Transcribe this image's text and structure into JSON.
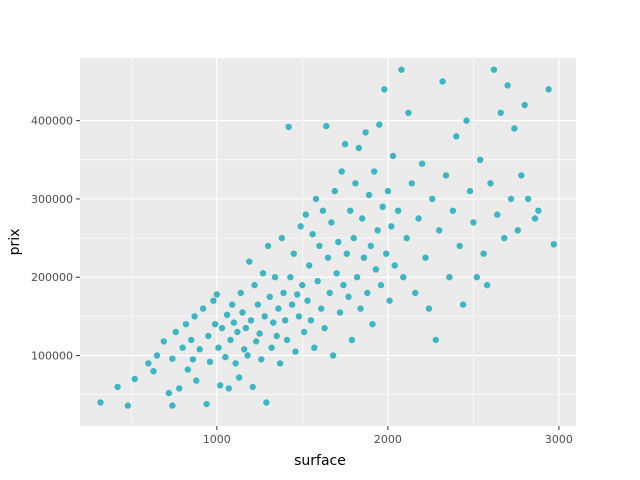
{
  "chart_data": {
    "type": "scatter",
    "title": "",
    "xlabel": "surface",
    "ylabel": "prix",
    "xlim": [
      200,
      3100
    ],
    "ylim": [
      10000,
      480000
    ],
    "x_ticks": [
      1000,
      2000,
      3000
    ],
    "x_tick_labels": [
      "1000",
      "2000",
      "3000"
    ],
    "y_ticks": [
      100000,
      200000,
      300000,
      400000
    ],
    "y_tick_labels": [
      "100000",
      "200000",
      "300000",
      "400000"
    ],
    "grid": true,
    "point_color": "#3eb6c1",
    "panel_color": "#ebebeb",
    "grid_color": "#ffffff",
    "points": [
      [
        320,
        40000
      ],
      [
        420,
        60000
      ],
      [
        480,
        36000
      ],
      [
        520,
        70000
      ],
      [
        600,
        90000
      ],
      [
        630,
        80000
      ],
      [
        650,
        100000
      ],
      [
        690,
        118000
      ],
      [
        720,
        52000
      ],
      [
        740,
        36000
      ],
      [
        740,
        96000
      ],
      [
        760,
        130000
      ],
      [
        780,
        58000
      ],
      [
        800,
        110000
      ],
      [
        820,
        140000
      ],
      [
        830,
        82000
      ],
      [
        850,
        120000
      ],
      [
        860,
        95000
      ],
      [
        870,
        150000
      ],
      [
        880,
        68000
      ],
      [
        900,
        108000
      ],
      [
        920,
        160000
      ],
      [
        940,
        38000
      ],
      [
        950,
        125000
      ],
      [
        960,
        92000
      ],
      [
        980,
        170000
      ],
      [
        990,
        140000
      ],
      [
        1000,
        178000
      ],
      [
        1010,
        110000
      ],
      [
        1020,
        62000
      ],
      [
        1030,
        135000
      ],
      [
        1050,
        98000
      ],
      [
        1060,
        152000
      ],
      [
        1070,
        58000
      ],
      [
        1080,
        120000
      ],
      [
        1090,
        165000
      ],
      [
        1100,
        142000
      ],
      [
        1110,
        90000
      ],
      [
        1120,
        130000
      ],
      [
        1130,
        72000
      ],
      [
        1140,
        180000
      ],
      [
        1150,
        155000
      ],
      [
        1160,
        108000
      ],
      [
        1170,
        135000
      ],
      [
        1180,
        100000
      ],
      [
        1190,
        220000
      ],
      [
        1200,
        145000
      ],
      [
        1210,
        60000
      ],
      [
        1220,
        190000
      ],
      [
        1230,
        118000
      ],
      [
        1240,
        165000
      ],
      [
        1250,
        128000
      ],
      [
        1260,
        95000
      ],
      [
        1270,
        205000
      ],
      [
        1280,
        150000
      ],
      [
        1290,
        40000
      ],
      [
        1300,
        240000
      ],
      [
        1310,
        175000
      ],
      [
        1320,
        110000
      ],
      [
        1330,
        142000
      ],
      [
        1340,
        200000
      ],
      [
        1350,
        125000
      ],
      [
        1360,
        160000
      ],
      [
        1370,
        90000
      ],
      [
        1380,
        250000
      ],
      [
        1390,
        180000
      ],
      [
        1400,
        145000
      ],
      [
        1410,
        120000
      ],
      [
        1420,
        392000
      ],
      [
        1430,
        200000
      ],
      [
        1440,
        165000
      ],
      [
        1450,
        230000
      ],
      [
        1460,
        105000
      ],
      [
        1470,
        178000
      ],
      [
        1480,
        150000
      ],
      [
        1490,
        265000
      ],
      [
        1500,
        190000
      ],
      [
        1510,
        130000
      ],
      [
        1520,
        280000
      ],
      [
        1530,
        170000
      ],
      [
        1540,
        215000
      ],
      [
        1550,
        145000
      ],
      [
        1560,
        255000
      ],
      [
        1570,
        110000
      ],
      [
        1580,
        300000
      ],
      [
        1590,
        195000
      ],
      [
        1600,
        240000
      ],
      [
        1610,
        160000
      ],
      [
        1620,
        285000
      ],
      [
        1630,
        135000
      ],
      [
        1640,
        393000
      ],
      [
        1650,
        225000
      ],
      [
        1660,
        180000
      ],
      [
        1670,
        270000
      ],
      [
        1680,
        100000
      ],
      [
        1690,
        310000
      ],
      [
        1700,
        205000
      ],
      [
        1710,
        245000
      ],
      [
        1720,
        155000
      ],
      [
        1730,
        335000
      ],
      [
        1740,
        190000
      ],
      [
        1750,
        370000
      ],
      [
        1760,
        230000
      ],
      [
        1770,
        175000
      ],
      [
        1780,
        285000
      ],
      [
        1790,
        120000
      ],
      [
        1800,
        250000
      ],
      [
        1810,
        320000
      ],
      [
        1820,
        200000
      ],
      [
        1830,
        365000
      ],
      [
        1840,
        160000
      ],
      [
        1850,
        275000
      ],
      [
        1860,
        225000
      ],
      [
        1870,
        385000
      ],
      [
        1880,
        180000
      ],
      [
        1890,
        305000
      ],
      [
        1900,
        240000
      ],
      [
        1910,
        140000
      ],
      [
        1920,
        335000
      ],
      [
        1930,
        210000
      ],
      [
        1940,
        260000
      ],
      [
        1950,
        395000
      ],
      [
        1960,
        190000
      ],
      [
        1970,
        290000
      ],
      [
        1980,
        440000
      ],
      [
        1990,
        230000
      ],
      [
        2000,
        310000
      ],
      [
        2010,
        170000
      ],
      [
        2020,
        265000
      ],
      [
        2030,
        355000
      ],
      [
        2040,
        215000
      ],
      [
        2060,
        285000
      ],
      [
        2080,
        465000
      ],
      [
        2090,
        200000
      ],
      [
        2110,
        250000
      ],
      [
        2120,
        410000
      ],
      [
        2140,
        320000
      ],
      [
        2160,
        180000
      ],
      [
        2180,
        275000
      ],
      [
        2200,
        345000
      ],
      [
        2220,
        225000
      ],
      [
        2240,
        160000
      ],
      [
        2260,
        300000
      ],
      [
        2280,
        120000
      ],
      [
        2300,
        260000
      ],
      [
        2320,
        450000
      ],
      [
        2340,
        330000
      ],
      [
        2360,
        200000
      ],
      [
        2380,
        285000
      ],
      [
        2400,
        380000
      ],
      [
        2420,
        240000
      ],
      [
        2440,
        165000
      ],
      [
        2460,
        400000
      ],
      [
        2480,
        310000
      ],
      [
        2500,
        270000
      ],
      [
        2520,
        200000
      ],
      [
        2540,
        350000
      ],
      [
        2560,
        230000
      ],
      [
        2580,
        190000
      ],
      [
        2600,
        320000
      ],
      [
        2620,
        465000
      ],
      [
        2640,
        280000
      ],
      [
        2660,
        410000
      ],
      [
        2680,
        250000
      ],
      [
        2700,
        445000
      ],
      [
        2720,
        300000
      ],
      [
        2740,
        390000
      ],
      [
        2760,
        260000
      ],
      [
        2780,
        330000
      ],
      [
        2800,
        420000
      ],
      [
        2820,
        300000
      ],
      [
        2860,
        275000
      ],
      [
        2880,
        285000
      ],
      [
        2940,
        440000
      ],
      [
        2970,
        242000
      ]
    ]
  }
}
